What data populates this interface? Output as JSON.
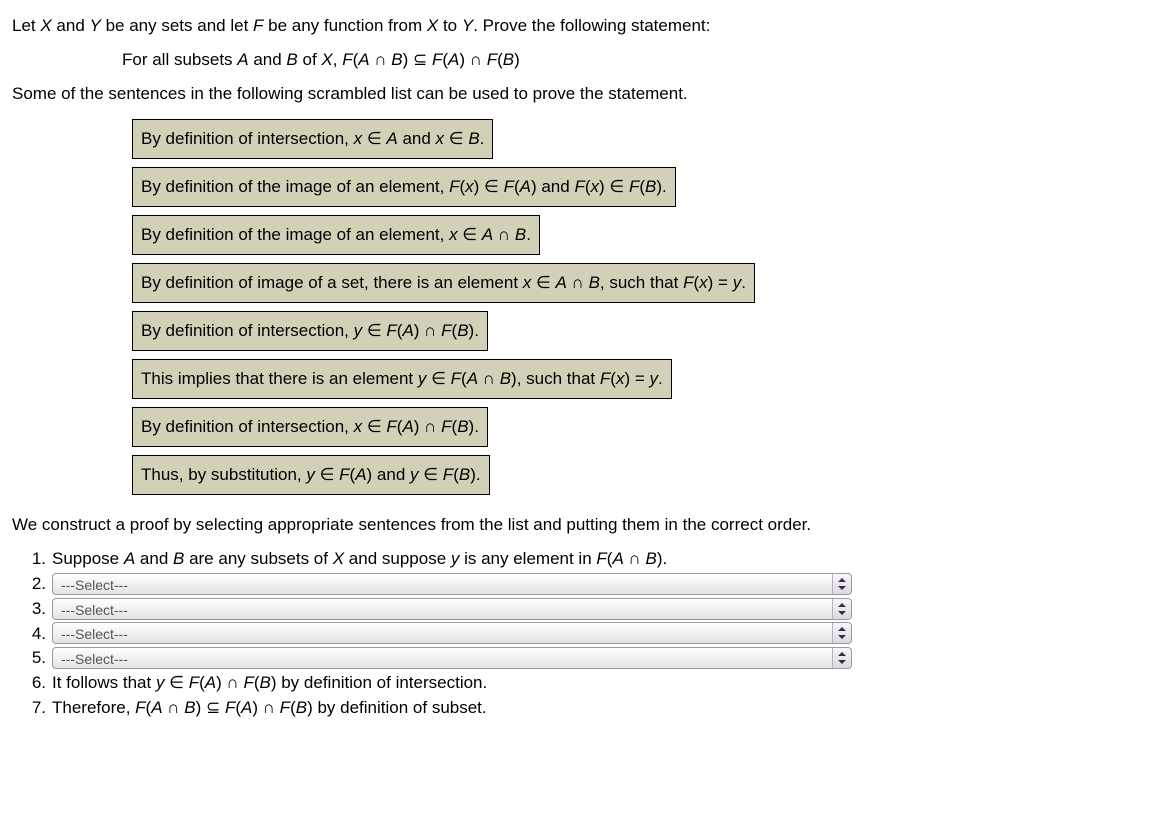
{
  "intro": {
    "line1_pre": "Let ",
    "line1_X": "X",
    "line1_mid1": " and ",
    "line1_Y": "Y",
    "line1_mid2": " be any sets and let ",
    "line1_F": "F",
    "line1_mid3": " be any function from ",
    "line1_X2": "X",
    "line1_mid4": " to ",
    "line1_Y2": "Y",
    "line1_end": ". Prove the following statement:",
    "stmt_pre": "For all subsets ",
    "stmt_A": "A",
    "stmt_mid1": " and ",
    "stmt_B": "B",
    "stmt_mid2": " of ",
    "stmt_X": "X",
    "stmt_mid3": ", ",
    "stmt_F1": "F",
    "stmt_p1": "(",
    "stmt_A2": "A",
    "stmt_cap1": " ∩ ",
    "stmt_B2": "B",
    "stmt_p2": ") ⊆ ",
    "stmt_F2": "F",
    "stmt_p3": "(",
    "stmt_A3": "A",
    "stmt_p4": ") ∩ ",
    "stmt_F3": "F",
    "stmt_p5": "(",
    "stmt_B3": "B",
    "stmt_p6": ")",
    "line3": "Some of the sentences in the following scrambled list can be used to prove the statement."
  },
  "sentences": {
    "s1_a": "By definition of intersection, ",
    "s1_b": "x",
    "s1_c": " ∈ ",
    "s1_d": "A",
    "s1_e": " and ",
    "s1_f": "x",
    "s1_g": " ∈ ",
    "s1_h": "B",
    "s1_i": ".",
    "s2_a": "By definition of the image of an element, ",
    "s2_b": "F",
    "s2_c": "(",
    "s2_d": "x",
    "s2_e": ") ∈ ",
    "s2_f": "F",
    "s2_g": "(",
    "s2_h": "A",
    "s2_i": ") and ",
    "s2_j": "F",
    "s2_k": "(",
    "s2_l": "x",
    "s2_m": ") ∈ ",
    "s2_n": "F",
    "s2_o": "(",
    "s2_p": "B",
    "s2_q": ").",
    "s3_a": "By definition of the image of an element, ",
    "s3_b": "x",
    "s3_c": " ∈ ",
    "s3_d": "A",
    "s3_e": " ∩ ",
    "s3_f": "B",
    "s3_g": ".",
    "s4_a": "By definition of image of a set, there is an element ",
    "s4_b": "x",
    "s4_c": " ∈ ",
    "s4_d": "A",
    "s4_e": " ∩ ",
    "s4_f": "B",
    "s4_g": ", such that ",
    "s4_h": "F",
    "s4_i": "(",
    "s4_j": "x",
    "s4_k": ") = ",
    "s4_l": "y",
    "s4_m": ".",
    "s5_a": "By definition of intersection, ",
    "s5_b": "y",
    "s5_c": " ∈ ",
    "s5_d": "F",
    "s5_e": "(",
    "s5_f": "A",
    "s5_g": ") ∩ ",
    "s5_h": "F",
    "s5_i": "(",
    "s5_j": "B",
    "s5_k": ").",
    "s6_a": "This implies that there is an element ",
    "s6_b": "y",
    "s6_c": " ∈ ",
    "s6_d": "F",
    "s6_e": "(",
    "s6_f": "A",
    "s6_g": " ∩ ",
    "s6_h": "B",
    "s6_i": "), such that ",
    "s6_j": "F",
    "s6_k": "(",
    "s6_l": "x",
    "s6_m": ") = ",
    "s6_n": "y",
    "s6_o": ".",
    "s7_a": "By definition of intersection, ",
    "s7_b": "x",
    "s7_c": " ∈ ",
    "s7_d": "F",
    "s7_e": "(",
    "s7_f": "A",
    "s7_g": ") ∩ ",
    "s7_h": "F",
    "s7_i": "(",
    "s7_j": "B",
    "s7_k": ").",
    "s8_a": "Thus, by substitution, ",
    "s8_b": "y",
    "s8_c": " ∈ ",
    "s8_d": "F",
    "s8_e": "(",
    "s8_f": "A",
    "s8_g": ") and ",
    "s8_h": "y",
    "s8_i": " ∈ ",
    "s8_j": "F",
    "s8_k": "(",
    "s8_l": "B",
    "s8_m": ")."
  },
  "construct_intro": "We construct a proof by selecting appropriate sentences from the list and putting them in the correct order.",
  "proof": {
    "n1": "1.",
    "n2": "2.",
    "n3": "3.",
    "n4": "4.",
    "n5": "5.",
    "n6": "6.",
    "n7": "7.",
    "step1_a": "Suppose ",
    "step1_b": "A",
    "step1_c": " and ",
    "step1_d": "B",
    "step1_e": " are any subsets of ",
    "step1_f": "X",
    "step1_g": " and suppose ",
    "step1_h": "y",
    "step1_i": " is any element in ",
    "step1_j": "F",
    "step1_k": "(",
    "step1_l": "A",
    "step1_m": " ∩ ",
    "step1_n": "B",
    "step1_o": ").",
    "select_placeholder": "---Select---",
    "step6_a": "It follows that ",
    "step6_b": "y",
    "step6_c": " ∈ ",
    "step6_d": "F",
    "step6_e": "(",
    "step6_f": "A",
    "step6_g": ") ∩ ",
    "step6_h": "F",
    "step6_i": "(",
    "step6_j": "B",
    "step6_k": ") by definition of intersection.",
    "step7_a": "Therefore, ",
    "step7_b": "F",
    "step7_c": "(",
    "step7_d": "A",
    "step7_e": " ∩ ",
    "step7_f": "B",
    "step7_g": ") ⊆ ",
    "step7_h": "F",
    "step7_i": "(",
    "step7_j": "A",
    "step7_k": ") ∩ ",
    "step7_l": "F",
    "step7_m": "(",
    "step7_n": "B",
    "step7_o": ") by definition of subset."
  }
}
